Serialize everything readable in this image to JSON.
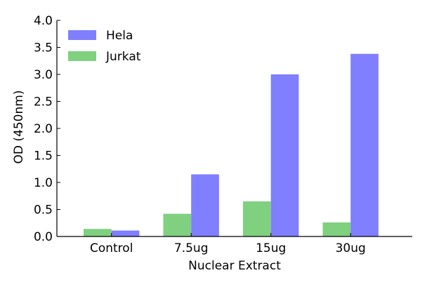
{
  "chart_data": {
    "type": "bar",
    "categories": [
      "Control",
      "7.5ug",
      "15ug",
      "30ug"
    ],
    "series": [
      {
        "name": "Jurkat",
        "color": "#7fd17f",
        "values": [
          0.14,
          0.42,
          0.65,
          0.26
        ]
      },
      {
        "name": "Hela",
        "color": "#7f7fff",
        "values": [
          0.11,
          1.15,
          3.0,
          3.38
        ]
      }
    ],
    "legend_order": [
      "Hela",
      "Jurkat"
    ],
    "legend_position": "top-left",
    "xlabel": "Nuclear Extract",
    "ylabel": "OD (450nm)",
    "ylim": [
      0.0,
      4.0
    ],
    "yticks": [
      "0.0",
      "0.5",
      "1.0",
      "1.5",
      "2.0",
      "2.5",
      "3.0",
      "3.5",
      "4.0"
    ],
    "grid": false
  }
}
